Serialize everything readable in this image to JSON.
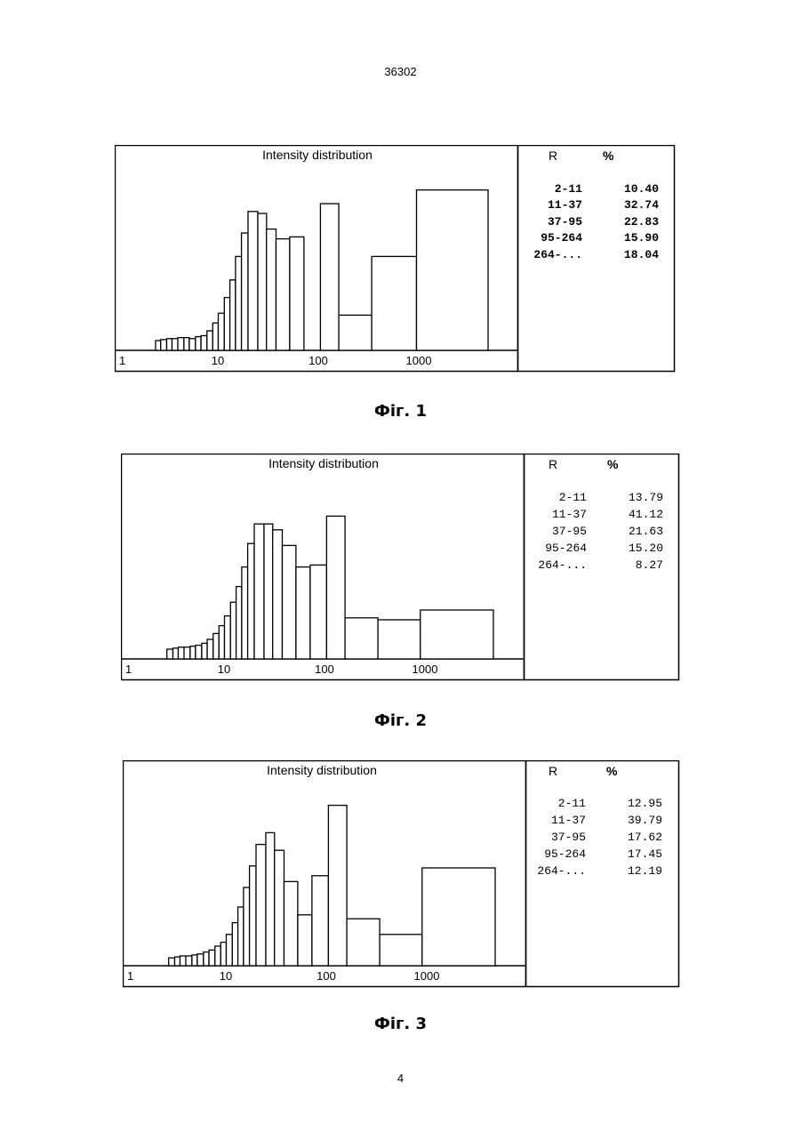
{
  "page": {
    "header": "36302",
    "footer": "4"
  },
  "figures": [
    {
      "caption": "Фіг. 1",
      "table_header": {
        "r": "R",
        "pct": "%"
      },
      "table": [
        {
          "r": "2-11",
          "pct": "10.40"
        },
        {
          "r": "11-37",
          "pct": "32.74"
        },
        {
          "r": "37-95",
          "pct": "22.83"
        },
        {
          "r": "95-264",
          "pct": "15.90"
        },
        {
          "r": "264-...",
          "pct": "18.04"
        }
      ]
    },
    {
      "caption": "Фіг. 2",
      "table_header": {
        "r": "R",
        "pct": "%"
      },
      "table": [
        {
          "r": "2-11",
          "pct": "13.79"
        },
        {
          "r": "11-37",
          "pct": "41.12"
        },
        {
          "r": "37-95",
          "pct": "21.63"
        },
        {
          "r": "95-264",
          "pct": "15.20"
        },
        {
          "r": "264-...",
          "pct": "8.27"
        }
      ]
    },
    {
      "caption": "Фіг. 3",
      "table_header": {
        "r": "R",
        "pct": "%"
      },
      "table": [
        {
          "r": "2-11",
          "pct": "12.95"
        },
        {
          "r": "11-37",
          "pct": "39.79"
        },
        {
          "r": "37-95",
          "pct": "17.62"
        },
        {
          "r": "95-264",
          "pct": "17.45"
        },
        {
          "r": "264-...",
          "pct": "12.19"
        }
      ]
    }
  ],
  "chart_data": [
    {
      "type": "bar",
      "title": "Intensity distribution",
      "x_scale": "log",
      "xlim": [
        1,
        10000
      ],
      "ylim": [
        0,
        100
      ],
      "grid": false,
      "x_tick_labels": [
        "1",
        "10",
        "100",
        "1000"
      ],
      "bins": [
        {
          "x0": 2.4,
          "x1": 2.7,
          "value": 5
        },
        {
          "x0": 2.7,
          "x1": 3.1,
          "value": 5.5
        },
        {
          "x0": 3.1,
          "x1": 3.5,
          "value": 6
        },
        {
          "x0": 3.5,
          "x1": 4.0,
          "value": 6
        },
        {
          "x0": 4.0,
          "x1": 4.6,
          "value": 6.5
        },
        {
          "x0": 4.6,
          "x1": 5.2,
          "value": 6.5
        },
        {
          "x0": 5.2,
          "x1": 6.0,
          "value": 6
        },
        {
          "x0": 6.0,
          "x1": 6.8,
          "value": 7
        },
        {
          "x0": 6.8,
          "x1": 7.8,
          "value": 7.5
        },
        {
          "x0": 7.8,
          "x1": 8.9,
          "value": 10
        },
        {
          "x0": 8.9,
          "x1": 10.1,
          "value": 14
        },
        {
          "x0": 10.1,
          "x1": 11.6,
          "value": 19
        },
        {
          "x0": 11.6,
          "x1": 13.2,
          "value": 27
        },
        {
          "x0": 13.2,
          "x1": 15.0,
          "value": 36
        },
        {
          "x0": 15.0,
          "x1": 17.2,
          "value": 48
        },
        {
          "x0": 17.2,
          "x1": 20.0,
          "value": 60
        },
        {
          "x0": 20.0,
          "x1": 25.0,
          "value": 71
        },
        {
          "x0": 25.0,
          "x1": 30.5,
          "value": 70
        },
        {
          "x0": 30.5,
          "x1": 38.0,
          "value": 62
        },
        {
          "x0": 38.0,
          "x1": 52.0,
          "value": 57
        },
        {
          "x0": 52.0,
          "x1": 72.0,
          "value": 58
        },
        {
          "x0": 72.0,
          "x1": 105.0,
          "value": 0
        },
        {
          "x0": 105.0,
          "x1": 160.0,
          "value": 75
        },
        {
          "x0": 160.0,
          "x1": 340.0,
          "value": 18
        },
        {
          "x0": 340.0,
          "x1": 950.0,
          "value": 48
        },
        {
          "x0": 950.0,
          "x1": 4900.0,
          "value": 82
        }
      ]
    },
    {
      "type": "bar",
      "title": "Intensity distribution",
      "x_scale": "log",
      "xlim": [
        1,
        10000
      ],
      "ylim": [
        0,
        100
      ],
      "grid": false,
      "x_tick_labels": [
        "1",
        "10",
        "100",
        "1000"
      ],
      "bins": [
        {
          "x0": 2.7,
          "x1": 3.1,
          "value": 5
        },
        {
          "x0": 3.1,
          "x1": 3.5,
          "value": 5.5
        },
        {
          "x0": 3.5,
          "x1": 4.0,
          "value": 6
        },
        {
          "x0": 4.0,
          "x1": 4.6,
          "value": 6
        },
        {
          "x0": 4.6,
          "x1": 5.2,
          "value": 6.5
        },
        {
          "x0": 5.2,
          "x1": 6.0,
          "value": 7
        },
        {
          "x0": 6.0,
          "x1": 6.8,
          "value": 8
        },
        {
          "x0": 6.8,
          "x1": 7.8,
          "value": 10
        },
        {
          "x0": 7.8,
          "x1": 8.9,
          "value": 13
        },
        {
          "x0": 8.9,
          "x1": 10.1,
          "value": 17
        },
        {
          "x0": 10.1,
          "x1": 11.6,
          "value": 22
        },
        {
          "x0": 11.6,
          "x1": 13.2,
          "value": 29
        },
        {
          "x0": 13.2,
          "x1": 15.0,
          "value": 37
        },
        {
          "x0": 15.0,
          "x1": 17.2,
          "value": 47
        },
        {
          "x0": 17.2,
          "x1": 20.0,
          "value": 59
        },
        {
          "x0": 20.0,
          "x1": 25.0,
          "value": 69
        },
        {
          "x0": 25.0,
          "x1": 30.5,
          "value": 69
        },
        {
          "x0": 30.5,
          "x1": 38.0,
          "value": 66
        },
        {
          "x0": 38.0,
          "x1": 52.0,
          "value": 58
        },
        {
          "x0": 52.0,
          "x1": 72.0,
          "value": 47
        },
        {
          "x0": 72.0,
          "x1": 105.0,
          "value": 48
        },
        {
          "x0": 105.0,
          "x1": 160.0,
          "value": 73
        },
        {
          "x0": 160.0,
          "x1": 340.0,
          "value": 21
        },
        {
          "x0": 340.0,
          "x1": 900.0,
          "value": 20
        },
        {
          "x0": 900.0,
          "x1": 4800.0,
          "value": 25
        }
      ]
    },
    {
      "type": "bar",
      "title": "Intensity distribution",
      "x_scale": "log",
      "xlim": [
        1,
        10000
      ],
      "ylim": [
        0,
        100
      ],
      "grid": false,
      "x_tick_labels": [
        "1",
        "10",
        "100",
        "1000"
      ],
      "bins": [
        {
          "x0": 2.7,
          "x1": 3.1,
          "value": 4
        },
        {
          "x0": 3.1,
          "x1": 3.5,
          "value": 4.5
        },
        {
          "x0": 3.5,
          "x1": 4.0,
          "value": 5
        },
        {
          "x0": 4.0,
          "x1": 4.6,
          "value": 5
        },
        {
          "x0": 4.6,
          "x1": 5.2,
          "value": 5.5
        },
        {
          "x0": 5.2,
          "x1": 6.0,
          "value": 6
        },
        {
          "x0": 6.0,
          "x1": 6.8,
          "value": 7
        },
        {
          "x0": 6.8,
          "x1": 7.8,
          "value": 8
        },
        {
          "x0": 7.8,
          "x1": 8.9,
          "value": 10
        },
        {
          "x0": 8.9,
          "x1": 10.1,
          "value": 12
        },
        {
          "x0": 10.1,
          "x1": 11.6,
          "value": 16
        },
        {
          "x0": 11.6,
          "x1": 13.2,
          "value": 22
        },
        {
          "x0": 13.2,
          "x1": 15.0,
          "value": 30
        },
        {
          "x0": 15.0,
          "x1": 17.2,
          "value": 40
        },
        {
          "x0": 17.2,
          "x1": 20.0,
          "value": 51
        },
        {
          "x0": 20.0,
          "x1": 25.0,
          "value": 62
        },
        {
          "x0": 25.0,
          "x1": 30.5,
          "value": 68
        },
        {
          "x0": 30.5,
          "x1": 38.0,
          "value": 59
        },
        {
          "x0": 38.0,
          "x1": 52.0,
          "value": 43
        },
        {
          "x0": 52.0,
          "x1": 72.0,
          "value": 26
        },
        {
          "x0": 72.0,
          "x1": 105.0,
          "value": 46
        },
        {
          "x0": 105.0,
          "x1": 160.0,
          "value": 82
        },
        {
          "x0": 160.0,
          "x1": 340.0,
          "value": 24
        },
        {
          "x0": 340.0,
          "x1": 900.0,
          "value": 16
        },
        {
          "x0": 900.0,
          "x1": 4800.0,
          "value": 50
        }
      ]
    }
  ]
}
